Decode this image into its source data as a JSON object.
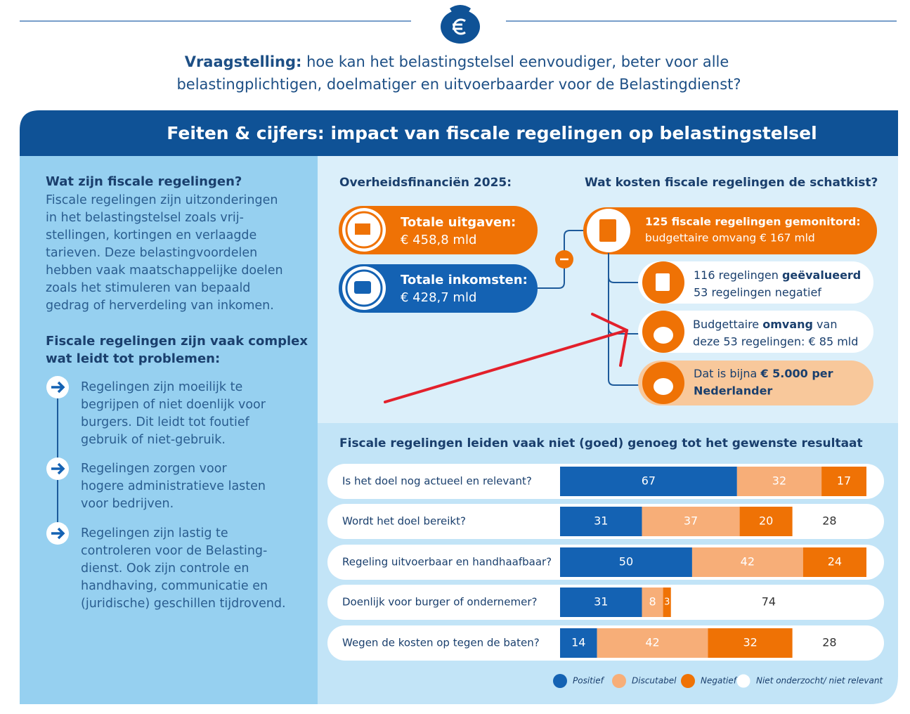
{
  "question": {
    "label": "Vraagstelling:",
    "line1": "hoe kan het belastingstelsel eenvoudiger, beter voor alle",
    "line2": "belastingplichtigen, doelmatiger en uitvoerbaarder voor de Belastingdienst?"
  },
  "banner": "Feiten & cijfers: impact van fiscale regelingen op belastingstelsel",
  "left": {
    "heading1": "Wat zijn fiscale regelingen?",
    "body": [
      "Fiscale regelingen zijn uitzonderingen",
      "in het belastingstelsel zoals vrij-",
      "stellingen, kortingen en verlaagde",
      "tarieven. Deze belastingvoordelen",
      "hebben vaak maatschappelijke doelen",
      "zoals het stimuleren van bepaald",
      "gedrag of herverdeling van inkomen."
    ],
    "heading2": [
      "Fiscale regelingen zijn vaak complex",
      "wat leidt tot problemen:"
    ],
    "problems": [
      [
        "Regelingen zijn moeilijk te",
        "begrijpen of niet doenlijk voor",
        "burgers. Dit leidt tot foutief",
        "gebruik of niet-gebruik."
      ],
      [
        "Regelingen zorgen voor",
        "hogere administratieve lasten",
        "voor bedrijven."
      ],
      [
        "Regelingen zijn lastig te",
        "controleren voor de Belasting-",
        "dienst. Ook zijn controle en",
        "handhaving, communicatie en",
        "(juridische) geschillen tijdrovend."
      ]
    ]
  },
  "finances": {
    "title": "Overheidsfinanciën 2025:",
    "items": [
      {
        "label": "Totale uitgaven:",
        "value": "€ 458,8 mld"
      },
      {
        "label": "Totale inkomsten:",
        "value": "€ 428,7 mld"
      }
    ]
  },
  "costs": {
    "title": "Wat kosten fiscale regelingen de schatkist?",
    "main": {
      "line1": "125 fiscale regelingen gemonitord:",
      "line2": "budgettaire omvang € 167 mld"
    },
    "items": [
      {
        "line1": [
          "116 regelingen ",
          "geëvalueerd"
        ],
        "line2": "53 regelingen negatief"
      },
      {
        "line1": [
          "Budgettaire ",
          "omvang",
          " van"
        ],
        "line2": "deze 53 regelingen: € 85 mld"
      },
      {
        "line1": [
          "Dat is bijna ",
          "€ 5.000 per"
        ],
        "line2": "Nederlander"
      }
    ]
  },
  "chart_data": {
    "type": "stacked-bar",
    "title": "Fiscale regelingen leiden vaak niet (goed) genoeg tot het gewenste resultaat",
    "categories": [
      "Is het doel nog actueel en relevant?",
      "Wordt het doel bereikt?",
      "Regeling uitvoerbaar en handhaafbaar?",
      "Doenlijk voor burger of ondernemer?",
      "Wegen de kosten op tegen de baten?"
    ],
    "xlim": [
      0,
      116
    ],
    "series": [
      {
        "name": "Positief",
        "color": "#1462b3",
        "values": [
          67,
          31,
          50,
          31,
          14
        ]
      },
      {
        "name": "Discutabel",
        "color": "#f7ae78",
        "values": [
          32,
          37,
          42,
          8,
          42
        ]
      },
      {
        "name": "Negatief",
        "color": "#ef7205",
        "values": [
          17,
          20,
          24,
          3,
          32
        ]
      },
      {
        "name": "Niet onderzocht/ niet relevant",
        "color": "#ffffff",
        "values": [
          null,
          28,
          null,
          74,
          28
        ]
      }
    ]
  }
}
